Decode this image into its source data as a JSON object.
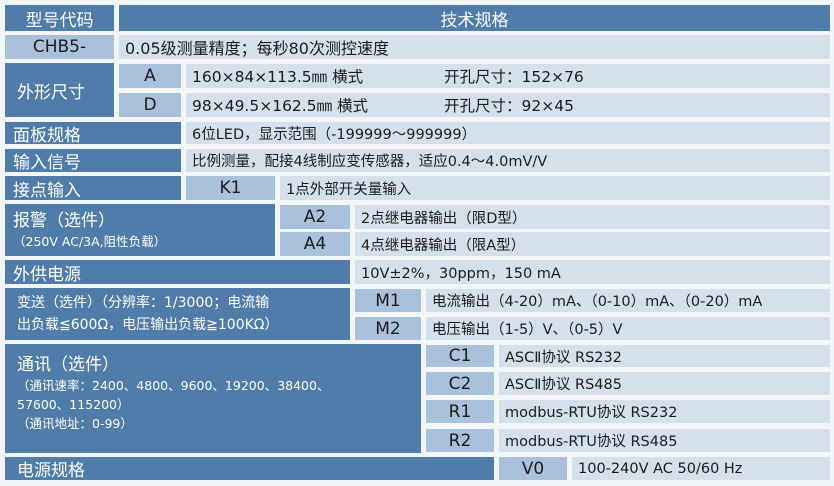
{
  "header": {
    "model_code": "型号代码",
    "spec": "技术规格"
  },
  "rows": {
    "model": {
      "code": "CHB5-",
      "desc": "0.05级测量精度；每秒80次测控速度"
    },
    "size": {
      "label": "外形尺寸",
      "options": [
        {
          "code": "A",
          "dims": "160×84×113.5㎜ 横式",
          "hole": "开孔尺寸：152×76"
        },
        {
          "code": "D",
          "dims": "98×49.5×162.5㎜ 横式",
          "hole": "开孔尺寸：92×45"
        }
      ]
    },
    "panel": {
      "label": "面板规格",
      "value": "6位LED，显示范围（-199999～999999）"
    },
    "input": {
      "label": "输入信号",
      "value": "比例测量，配接4线制应变传感器，适应0.4～4.0mV/V"
    },
    "contact": {
      "label": "接点输入",
      "code": "K1",
      "value": "1点外部开关量输入"
    },
    "alarm": {
      "label": "报警（选件）",
      "sub": "（250V AC/3A,阻性负载）",
      "options": [
        {
          "code": "A2",
          "value": "2点继电器输出（限D型）"
        },
        {
          "code": "A4",
          "value": "4点继电器输出（限A型）"
        }
      ]
    },
    "ext_power": {
      "label": "外供电源",
      "value": "10V±2%，30ppm，150 mA"
    },
    "transmit": {
      "label_line1": "变送（选件）（分辨率：1/3000；电流输",
      "label_line2": "出负载≦600Ω，电压输出负载≧100KΩ）",
      "options": [
        {
          "code": "M1",
          "value": "电流输出（4-20）mA、（0-10）mA、（0-20）mA"
        },
        {
          "code": "M2",
          "value": "电压输出（1-5）V、（0-5）V"
        }
      ]
    },
    "comm": {
      "label": "通讯（选件）",
      "rate_line1": "（通讯速率：2400、4800、9600、19200、38400、",
      "rate_line2": "57600、115200）",
      "address": "（通讯地址：0-99）",
      "options": [
        {
          "code": "C1",
          "value": "ASCⅡ协议 RS232"
        },
        {
          "code": "C2",
          "value": "ASCⅡ协议 RS485"
        },
        {
          "code": "R1",
          "value": "modbus-RTU协议 RS232"
        },
        {
          "code": "R2",
          "value": "modbus-RTU协议 RS485"
        }
      ]
    },
    "power": {
      "label": "电源规格",
      "code": "V0",
      "value": "100-240V AC 50/60 Hz"
    }
  },
  "colors": {
    "dark": "#4f7ca9",
    "medium": "#a9c1da",
    "light": "#d4e1ed"
  }
}
